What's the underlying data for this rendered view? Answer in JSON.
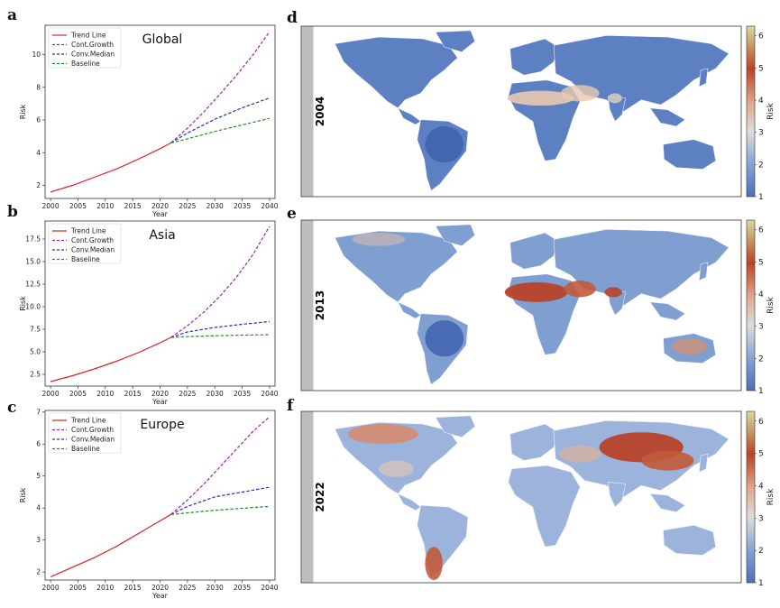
{
  "colors": {
    "trend": "#e02020",
    "cont_growth": "#a020b0",
    "conv_median": "#2030c8",
    "baseline": "#209020",
    "ocean": "#ffffff",
    "land_low": "#4a6fb8",
    "land_mid": "#dcdcdc",
    "land_high": "#b8432a",
    "cb_top": "#d8d8a0"
  },
  "chart_data": [
    {
      "panel": "a",
      "type": "line",
      "title": "Global",
      "xlabel": "Year",
      "ylabel": "Risk",
      "xlim": [
        1999,
        2041
      ],
      "ylim": [
        1.2,
        11.8
      ],
      "xticks": [
        2000,
        2005,
        2010,
        2015,
        2020,
        2025,
        2030,
        2035,
        2040
      ],
      "yticks": [
        2,
        4,
        6,
        8,
        10
      ],
      "legend": [
        "Trend Line",
        "Cont.Growth",
        "Conv.Median",
        "Baseline"
      ],
      "legend_position": "top-left",
      "series": [
        {
          "name": "Trend Line",
          "style": "solid",
          "x": [
            2000,
            2004,
            2008,
            2012,
            2016,
            2020,
            2022
          ],
          "y": [
            1.6,
            2.0,
            2.5,
            3.0,
            3.6,
            4.25,
            4.6
          ]
        },
        {
          "name": "Cont.Growth",
          "style": "dashed",
          "x": [
            2022,
            2025,
            2028,
            2031,
            2034,
            2037,
            2040
          ],
          "y": [
            4.6,
            5.5,
            6.5,
            7.6,
            8.75,
            10.0,
            11.4
          ]
        },
        {
          "name": "Conv.Median",
          "style": "dashed",
          "x": [
            2022,
            2025,
            2030,
            2035,
            2040
          ],
          "y": [
            4.6,
            5.2,
            6.05,
            6.75,
            7.35
          ]
        },
        {
          "name": "Baseline",
          "style": "dashed",
          "x": [
            2022,
            2025,
            2030,
            2035,
            2040
          ],
          "y": [
            4.6,
            4.85,
            5.3,
            5.7,
            6.1
          ]
        }
      ]
    },
    {
      "panel": "b",
      "type": "line",
      "title": "Asia",
      "xlabel": "Year",
      "ylabel": "Risk",
      "xlim": [
        1999,
        2041
      ],
      "ylim": [
        1.2,
        19.5
      ],
      "xticks": [
        2000,
        2005,
        2010,
        2015,
        2020,
        2025,
        2030,
        2035,
        2040
      ],
      "yticks": [
        2.5,
        5.0,
        7.5,
        10.0,
        12.5,
        15.0,
        17.5
      ],
      "yticklabels": [
        "2.5",
        "5.0",
        "7.5",
        "10.0",
        "12.5",
        "15.0",
        "17.5"
      ],
      "legend": [
        "Trend Line",
        "Cont.Growth",
        "Conv.Median",
        "Baseline"
      ],
      "legend_position": "top-left",
      "series": [
        {
          "name": "Trend Line",
          "style": "solid",
          "x": [
            2000,
            2004,
            2008,
            2012,
            2016,
            2020,
            2022
          ],
          "y": [
            1.7,
            2.35,
            3.1,
            3.95,
            4.9,
            6.0,
            6.6
          ]
        },
        {
          "name": "Cont.Growth",
          "style": "dashed",
          "x": [
            2022,
            2025,
            2028,
            2031,
            2034,
            2037,
            2040
          ],
          "y": [
            6.6,
            7.9,
            9.4,
            11.2,
            13.3,
            15.8,
            18.9
          ]
        },
        {
          "name": "Conv.Median",
          "style": "dashed",
          "x": [
            2022,
            2025,
            2030,
            2035,
            2040
          ],
          "y": [
            6.6,
            7.2,
            7.7,
            8.05,
            8.35
          ]
        },
        {
          "name": "Baseline",
          "style": "dashed",
          "x": [
            2022,
            2025,
            2030,
            2035,
            2040
          ],
          "y": [
            6.6,
            6.68,
            6.78,
            6.85,
            6.9
          ]
        }
      ]
    },
    {
      "panel": "c",
      "type": "line",
      "title": "Europe",
      "xlabel": "Year",
      "ylabel": "Risk",
      "xlim": [
        1999,
        2041
      ],
      "ylim": [
        1.75,
        7.05
      ],
      "xticks": [
        2000,
        2005,
        2010,
        2015,
        2020,
        2025,
        2030,
        2035,
        2040
      ],
      "yticks": [
        2,
        3,
        4,
        5,
        6,
        7
      ],
      "legend": [
        "Trend Line",
        "Cont.Growth",
        "Conv.Median",
        "Baseline"
      ],
      "legend_position": "top-left",
      "series": [
        {
          "name": "Trend Line",
          "style": "solid",
          "x": [
            2000,
            2004,
            2008,
            2012,
            2016,
            2020,
            2022
          ],
          "y": [
            1.85,
            2.15,
            2.45,
            2.8,
            3.2,
            3.6,
            3.8
          ]
        },
        {
          "name": "Cont.Growth",
          "style": "dashed",
          "x": [
            2022,
            2025,
            2028,
            2031,
            2034,
            2037,
            2040
          ],
          "y": [
            3.8,
            4.25,
            4.75,
            5.3,
            5.85,
            6.4,
            6.85
          ]
        },
        {
          "name": "Conv.Median",
          "style": "dashed",
          "x": [
            2022,
            2025,
            2030,
            2035,
            2040
          ],
          "y": [
            3.8,
            4.05,
            4.35,
            4.5,
            4.65
          ]
        },
        {
          "name": "Baseline",
          "style": "dashed",
          "x": [
            2022,
            2025,
            2030,
            2035,
            2040
          ],
          "y": [
            3.8,
            3.85,
            3.93,
            3.99,
            4.05
          ]
        }
      ]
    },
    {
      "panel": "d",
      "type": "heatmap",
      "year_label": "2004",
      "colorbar_label": "Risk",
      "colorbar_ticks": [
        1,
        2,
        3,
        4,
        5,
        6
      ],
      "colorbar_range": [
        1,
        6.3
      ],
      "description": "World map of risk, mostly low (blue) with elevated values across Sahel and Middle East"
    },
    {
      "panel": "e",
      "type": "heatmap",
      "year_label": "2013",
      "colorbar_label": "Risk",
      "colorbar_ticks": [
        1,
        2,
        3,
        4,
        5,
        6
      ],
      "colorbar_range": [
        1,
        6.3
      ],
      "description": "World map of risk, high values in Sahara, Arabia and north India"
    },
    {
      "panel": "f",
      "type": "heatmap",
      "year_label": "2022",
      "colorbar_label": "Risk",
      "colorbar_ticks": [
        1,
        2,
        3,
        4,
        5,
        6
      ],
      "colorbar_range": [
        1,
        6.3
      ],
      "description": "World map of risk, high values in Canada, Chile, Mongolia and China"
    }
  ]
}
